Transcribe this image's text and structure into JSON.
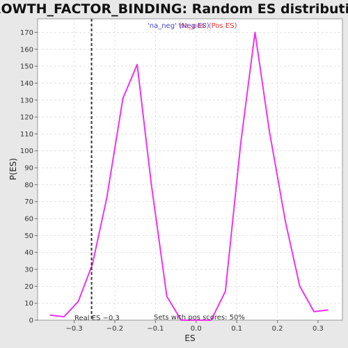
{
  "chart_data": {
    "type": "line",
    "title": "GROWTH_FACTOR_BINDING: Random ES distribution",
    "xlabel": "ES",
    "ylabel": "P(ES)",
    "xlim": [
      -0.39,
      0.36
    ],
    "ylim": [
      0,
      178
    ],
    "x_ticks": [
      -0.3,
      -0.2,
      -0.1,
      0.0,
      0.1,
      0.2,
      0.3
    ],
    "x_tick_labels": [
      "−0.3",
      "−0.2",
      "−0.1",
      "0.0",
      "0.1",
      "0.2",
      "0.3"
    ],
    "y_ticks": [
      0,
      10,
      20,
      30,
      40,
      50,
      60,
      70,
      80,
      90,
      100,
      110,
      120,
      130,
      140,
      150,
      160,
      170
    ],
    "grid": true,
    "series": [
      {
        "color": "#ee33ee",
        "x": [
          -0.36,
          -0.325,
          -0.29,
          -0.255,
          -0.22,
          -0.18,
          -0.145,
          -0.11,
          -0.072,
          -0.037,
          0.0,
          0.037,
          0.072,
          0.11,
          0.145,
          0.18,
          0.22,
          0.255,
          0.29,
          0.325
        ],
        "y": [
          3,
          2,
          11,
          33,
          72,
          131,
          151,
          80,
          14,
          0,
          0,
          0,
          17,
          105,
          170,
          112,
          58,
          20,
          5,
          6
        ]
      }
    ],
    "legend": {
      "placement": "top-center",
      "entries": [
        {
          "text": "'na_neg' (Neg ES)",
          "color": "#4444dd"
        },
        {
          "text": "'na_pos' (Pos ES)",
          "color": "#ee3333"
        }
      ]
    },
    "real_es": {
      "value": -0.2572,
      "label": "Real ES −0.3"
    },
    "annotation": "Sets with pos scores: 50%"
  }
}
